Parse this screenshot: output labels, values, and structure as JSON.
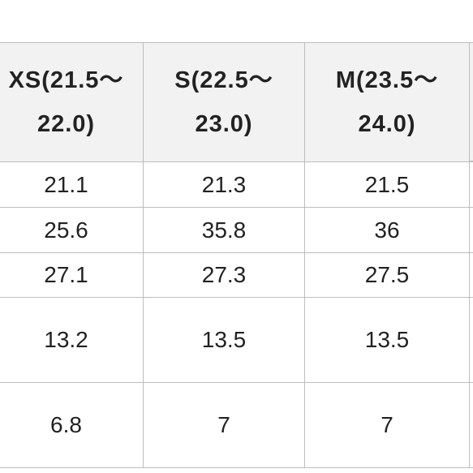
{
  "table": {
    "header": [
      "XS(21.5～22.0)",
      "S(22.5～23.0)",
      "M(23.5～24.0)"
    ],
    "rows": [
      [
        "21.1",
        "21.3",
        "21.5"
      ],
      [
        "25.6",
        "35.8",
        "36"
      ],
      [
        "27.1",
        "27.3",
        "27.5"
      ],
      [
        "13.2",
        "13.5",
        "13.5"
      ],
      [
        "6.8",
        "7",
        "7"
      ]
    ]
  }
}
